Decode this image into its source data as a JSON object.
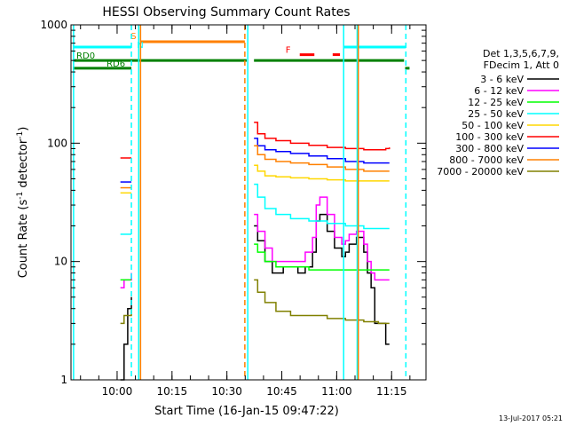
{
  "chart_data": {
    "type": "line",
    "title": "HESSI Observing Summary Count Rates",
    "xlabel": "Start Time (16-Jan-15 09:47:22)",
    "ylabel_main": "Count Rate (s",
    "ylabel_sup1": "-1",
    "ylabel_mid": " detector",
    "ylabel_sup2": "-1",
    "ylabel_end": ")",
    "footer": "13-Jul-2017 05:21",
    "x_unit": "minutes from 09:47:22",
    "xlim": [
      0,
      97
    ],
    "ylim": [
      1,
      1000
    ],
    "yscale": "log",
    "xticks": [
      {
        "label": "10:00",
        "value": 12.6
      },
      {
        "label": "10:15",
        "value": 27.6
      },
      {
        "label": "10:30",
        "value": 42.6
      },
      {
        "label": "10:45",
        "value": 57.6
      },
      {
        "label": "11:00",
        "value": 72.6
      },
      {
        "label": "11:15",
        "value": 87.6
      }
    ],
    "yticks": [
      {
        "label": "1",
        "value": 1
      },
      {
        "label": "10",
        "value": 10
      },
      {
        "label": "100",
        "value": 100
      },
      {
        "label": "1000",
        "value": 1000
      }
    ],
    "legend": {
      "header_line1": "Det 1,3,5,6,7,9,",
      "header_line2": "FDecim 1, Att 0",
      "placement": "right"
    },
    "series": [
      {
        "name": "3 - 6 keV",
        "color": "#000000",
        "x": [
          13.5,
          14.5,
          15.5,
          16.5,
          50,
          51,
          53,
          55,
          58,
          62,
          64,
          66,
          67,
          68,
          70,
          72,
          74,
          75,
          76,
          78,
          80,
          81,
          82,
          83,
          85,
          86,
          87
        ],
        "y": [
          1,
          2,
          4,
          5,
          20,
          15,
          10,
          8,
          9,
          8,
          9,
          12,
          22,
          25,
          18,
          13,
          11,
          12,
          14,
          16,
          12,
          8,
          6,
          3,
          3,
          2,
          2
        ]
      },
      {
        "name": "6 - 12 keV",
        "color": "#ff00ff",
        "x": [
          13.5,
          14.5,
          15.5,
          16.5,
          50,
          51,
          53,
          55,
          58,
          62,
          64,
          66,
          67,
          68,
          70,
          72,
          74,
          75,
          76,
          78,
          80,
          81,
          82,
          83,
          85,
          86,
          87
        ],
        "y": [
          6,
          7,
          7,
          8,
          25,
          18,
          13,
          10,
          10,
          10,
          12,
          16,
          30,
          35,
          25,
          16,
          14,
          15,
          17,
          18,
          14,
          10,
          8,
          7,
          7,
          7,
          7
        ]
      },
      {
        "name": "12 - 25 keV",
        "color": "#00ff00",
        "x": [
          13.5,
          14.5,
          15.5,
          16.5,
          50,
          51,
          53,
          56,
          60,
          65,
          70,
          75,
          80,
          84,
          86,
          87
        ],
        "y": [
          7,
          7,
          7,
          7,
          14,
          12,
          10,
          9,
          9,
          8.5,
          8.5,
          8.5,
          8.5,
          8.5,
          8.5,
          8.5
        ]
      },
      {
        "name": "25 - 50 keV",
        "color": "#00ffff",
        "x": [
          13.5,
          14.5,
          15.5,
          16.5,
          50,
          51,
          53,
          56,
          60,
          65,
          70,
          75,
          80,
          84,
          86,
          87
        ],
        "y": [
          17,
          17,
          17,
          17,
          45,
          35,
          28,
          25,
          23,
          22,
          21,
          20,
          19,
          19,
          19,
          19
        ]
      },
      {
        "name": "50 - 100 keV",
        "color": "#ffd700",
        "x": [
          13.5,
          14.5,
          15.5,
          16.5,
          50,
          51,
          53,
          56,
          60,
          65,
          70,
          75,
          80,
          84,
          86,
          87
        ],
        "y": [
          38,
          38,
          38,
          38,
          65,
          58,
          53,
          52,
          51,
          50,
          49,
          48,
          48,
          48,
          48,
          48
        ]
      },
      {
        "name": "100 - 300 keV",
        "color": "#ff0000",
        "x": [
          13.5,
          14.5,
          15.5,
          16.5,
          50,
          51,
          53,
          56,
          60,
          65,
          70,
          75,
          80,
          84,
          86,
          87
        ],
        "y": [
          75,
          75,
          75,
          75,
          150,
          120,
          110,
          105,
          100,
          96,
          92,
          90,
          88,
          88,
          90,
          92
        ]
      },
      {
        "name": "300 - 800 keV",
        "color": "#0000ff",
        "x": [
          13.5,
          14.5,
          15.5,
          16.5,
          50,
          51,
          53,
          56,
          60,
          65,
          70,
          75,
          80,
          84,
          86,
          87
        ],
        "y": [
          47,
          47,
          47,
          47,
          110,
          95,
          88,
          85,
          82,
          78,
          74,
          70,
          68,
          68,
          68,
          68
        ]
      },
      {
        "name": "800 - 7000 keV",
        "color": "#ff8000",
        "x": [
          13.5,
          14.5,
          15.5,
          16.5,
          50,
          51,
          53,
          56,
          60,
          65,
          70,
          75,
          80,
          84,
          86,
          87
        ],
        "y": [
          42,
          42,
          42,
          42,
          95,
          80,
          73,
          70,
          68,
          66,
          63,
          60,
          58,
          58,
          58,
          58
        ]
      },
      {
        "name": "7000 - 20000 keV",
        "color": "#808000",
        "x": [
          13.5,
          14.5,
          15.5,
          16.5,
          50,
          51,
          53,
          56,
          60,
          65,
          70,
          75,
          80,
          84,
          86,
          87
        ],
        "y": [
          3,
          3.5,
          3.5,
          4,
          7,
          5.5,
          4.5,
          3.8,
          3.5,
          3.5,
          3.3,
          3.2,
          3.1,
          3,
          3,
          3
        ]
      }
    ],
    "vlines": [
      {
        "x": 0.7,
        "color": "#00ffff",
        "dashed": false
      },
      {
        "x": 16.5,
        "color": "#00ffff",
        "dashed": true
      },
      {
        "x": 18.5,
        "color": "#00ffff",
        "dashed": false
      },
      {
        "x": 19.0,
        "color": "#ff8000",
        "dashed": false
      },
      {
        "x": 47.5,
        "color": "#ff8000",
        "dashed": true
      },
      {
        "x": 48.3,
        "color": "#00ffff",
        "dashed": false
      },
      {
        "x": 74.5,
        "color": "#00ffff",
        "dashed": false
      },
      {
        "x": 78.2,
        "color": "#00ffff",
        "dashed": false
      },
      {
        "x": 78.5,
        "color": "#ff8000",
        "dashed": false
      },
      {
        "x": 91.5,
        "color": "#00ffff",
        "dashed": true
      }
    ],
    "flag_bars": [
      {
        "label": "",
        "color": "#00ffff",
        "y": 650,
        "segments": [
          [
            0.5,
            16.5
          ],
          [
            74.5,
            91.5
          ]
        ]
      },
      {
        "label": "",
        "color": "#ff8000",
        "y": 720,
        "segments": [
          [
            19.0,
            47.5
          ]
        ]
      },
      {
        "label": "RD0",
        "color": "#008000",
        "y": 500,
        "segments": [
          [
            0.5,
            48.0
          ],
          [
            50.0,
            91.0
          ]
        ]
      },
      {
        "label": "RD6",
        "color": "#008000",
        "y": 430,
        "segments": [
          [
            0.5,
            16.5
          ],
          [
            91.3,
            92.5
          ]
        ]
      },
      {
        "label": "F",
        "color": "#ff0000",
        "y": 560,
        "segments": [
          [
            62.5,
            66.5
          ],
          [
            71.5,
            73.5
          ]
        ]
      }
    ],
    "flag_markers": [
      {
        "text": "S",
        "color": "#ff8000",
        "x": 16.3,
        "y": 760
      },
      {
        "text": "N",
        "color": "#00ffff",
        "x": 18.0,
        "y": 640
      }
    ]
  }
}
